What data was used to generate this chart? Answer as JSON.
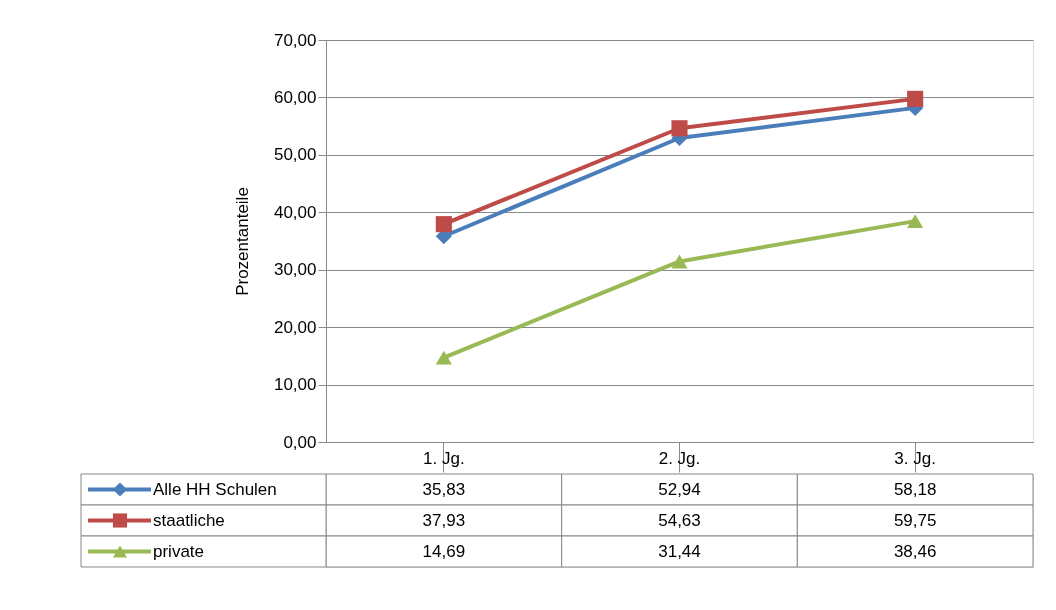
{
  "chart_data": {
    "type": "line",
    "ylabel": "Prozentanteile",
    "categories": [
      "1. Jg.",
      "2. Jg.",
      "3. Jg."
    ],
    "series": [
      {
        "name": "Alle HH Schulen",
        "color": "#4a7ebb",
        "marker": "diamond",
        "values": [
          35.83,
          52.94,
          58.18
        ],
        "value_labels": [
          "35,83",
          "52,94",
          "58,18"
        ]
      },
      {
        "name": "staatliche",
        "color": "#be4b48",
        "marker": "square",
        "values": [
          37.93,
          54.63,
          59.75
        ],
        "value_labels": [
          "37,93",
          "54,63",
          "59,75"
        ]
      },
      {
        "name": "private",
        "color": "#98b954",
        "marker": "triangle",
        "values": [
          14.69,
          31.44,
          38.46
        ],
        "value_labels": [
          "14,69",
          "31,44",
          "38,46"
        ]
      }
    ],
    "ylim": [
      0,
      70
    ],
    "yticks": [
      {
        "value": 0,
        "label": "0,00"
      },
      {
        "value": 10,
        "label": "10,00"
      },
      {
        "value": 20,
        "label": "20,00"
      },
      {
        "value": 30,
        "label": "30,00"
      },
      {
        "value": 40,
        "label": "40,00"
      },
      {
        "value": 50,
        "label": "50,00"
      },
      {
        "value": 60,
        "label": "60,00"
      },
      {
        "value": 70,
        "label": "70,00"
      }
    ],
    "grid": "y",
    "legend": "bottom",
    "line_style": "solid"
  }
}
